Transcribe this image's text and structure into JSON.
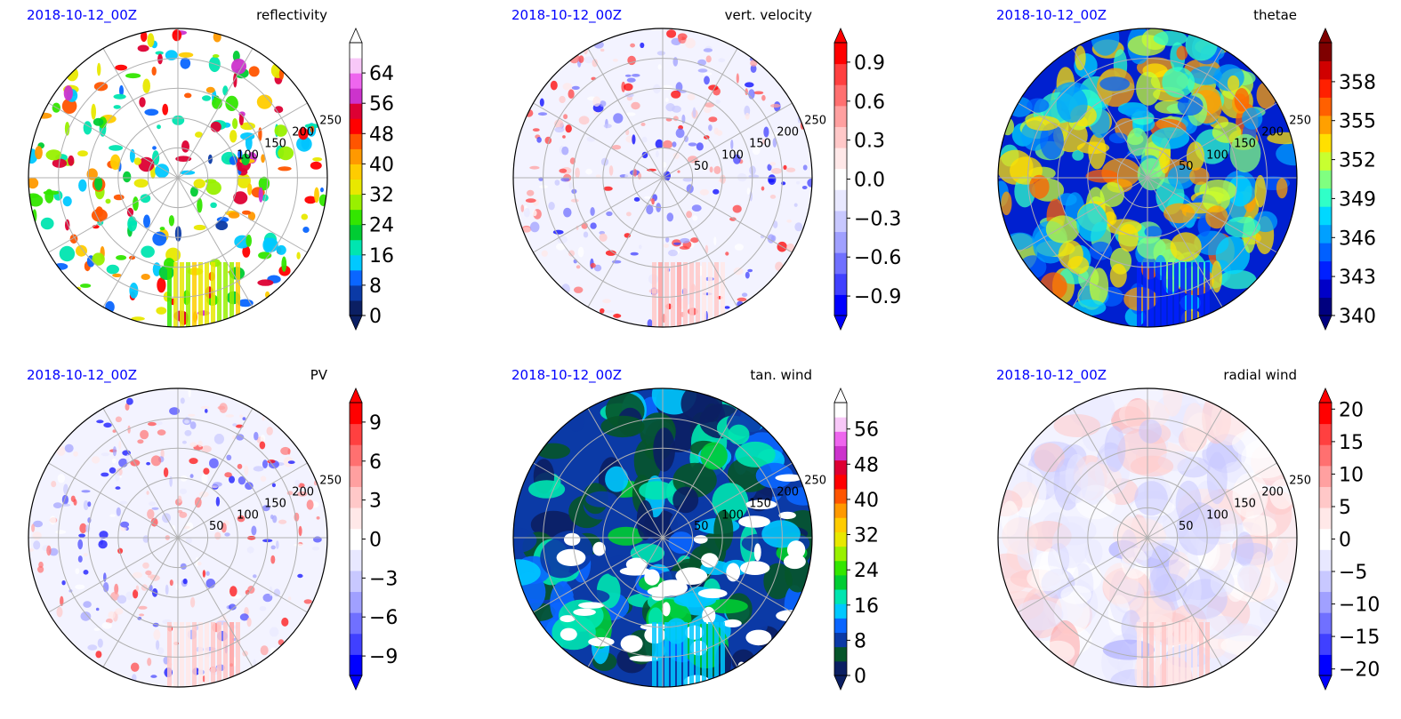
{
  "chart_data": [
    {
      "type": "heatmap",
      "projection": "polar",
      "date": "2018-10-12_00Z",
      "title": "reflectivity",
      "ring_labels": [
        "100",
        "150",
        "200",
        "250"
      ],
      "colorbar_ticks": [
        "0",
        "8",
        "16",
        "24",
        "32",
        "40",
        "48",
        "56",
        "64"
      ],
      "colorbar_range": [
        0,
        72
      ],
      "colormap": [
        "#0b1f63",
        "#0b3aa6",
        "#0a66ff",
        "#00c8ff",
        "#00e5b0",
        "#00cc33",
        "#33e600",
        "#99f000",
        "#e8e800",
        "#ffcc00",
        "#ff9900",
        "#ff5500",
        "#ff0000",
        "#dd0033",
        "#cc33cc",
        "#ee66ee",
        "#f8c8f8",
        "#ffffff"
      ],
      "extend": "both"
    },
    {
      "type": "heatmap",
      "projection": "polar",
      "date": "2018-10-12_00Z",
      "title": "vert. velocity",
      "ring_labels": [
        "50",
        "100",
        "150",
        "200",
        "250"
      ],
      "colorbar_ticks": [
        "0.9",
        "0.6",
        "0.3",
        "0.0",
        "−0.3",
        "−0.6",
        "−0.9"
      ],
      "colorbar_range": [
        -1.05,
        1.05
      ],
      "colormap": [
        "#0000ff",
        "#4040ff",
        "#7070ff",
        "#a0a0ff",
        "#c8c8ff",
        "#e8e8ff",
        "#ffffff",
        "#ffe8e8",
        "#ffc8c8",
        "#ffa0a0",
        "#ff7070",
        "#ff4040",
        "#ff0000"
      ],
      "extend": "both"
    },
    {
      "type": "heatmap",
      "projection": "polar",
      "date": "2018-10-12_00Z",
      "title": "thetae",
      "ring_labels": [
        "50",
        "100",
        "150",
        "200",
        "250"
      ],
      "colorbar_ticks": [
        "358",
        "355",
        "352",
        "349",
        "346",
        "343",
        "340"
      ],
      "colorbar_range": [
        340,
        361
      ],
      "colormap": [
        "#00007f",
        "#0000c8",
        "#0020ff",
        "#0060ff",
        "#00a0ff",
        "#00d8ff",
        "#30ffc8",
        "#80ff80",
        "#c8ff30",
        "#ffe000",
        "#ffa000",
        "#ff6000",
        "#ff2000",
        "#d00000",
        "#7f0000"
      ],
      "extend": "both"
    },
    {
      "type": "heatmap",
      "projection": "polar",
      "date": "2018-10-12_00Z",
      "title": "PV",
      "ring_labels": [
        "50",
        "100",
        "150",
        "200",
        "250"
      ],
      "colorbar_ticks": [
        "9",
        "6",
        "3",
        "0",
        "−3",
        "−6",
        "−9"
      ],
      "colorbar_range": [
        -10.5,
        10.5
      ],
      "colormap": [
        "#0000ff",
        "#4040ff",
        "#7070ff",
        "#a0a0ff",
        "#c8c8ff",
        "#e8e8ff",
        "#ffffff",
        "#ffe8e8",
        "#ffc8c8",
        "#ffa0a0",
        "#ff7070",
        "#ff4040",
        "#ff0000"
      ],
      "extend": "both"
    },
    {
      "type": "heatmap",
      "projection": "polar",
      "date": "2018-10-12_00Z",
      "title": "tan. wind",
      "ring_labels": [
        "50",
        "100",
        "150",
        "200",
        "250"
      ],
      "colorbar_ticks": [
        "56",
        "48",
        "40",
        "32",
        "24",
        "16",
        "8",
        "0"
      ],
      "colorbar_range": [
        0,
        62
      ],
      "colormap": [
        "#0b1f63",
        "#06552a",
        "#0b3aa6",
        "#0a66ff",
        "#00c8ff",
        "#00e5b0",
        "#00cc33",
        "#33e600",
        "#99f000",
        "#e8e800",
        "#ffcc00",
        "#ff9900",
        "#ff5500",
        "#ff0000",
        "#dd0033",
        "#cc33cc",
        "#ee66ee",
        "#f8c8f8",
        "#ffffff"
      ],
      "extend": "both"
    },
    {
      "type": "heatmap",
      "projection": "polar",
      "date": "2018-10-12_00Z",
      "title": "radial wind",
      "ring_labels": [
        "50",
        "100",
        "150",
        "200",
        "250"
      ],
      "colorbar_ticks": [
        "20",
        "15",
        "10",
        "5",
        "0",
        "−5",
        "−10",
        "−15",
        "−20"
      ],
      "colorbar_range": [
        -21,
        21
      ],
      "colormap": [
        "#0000ff",
        "#4040ff",
        "#7070ff",
        "#a0a0ff",
        "#c8c8ff",
        "#e8e8ff",
        "#ffffff",
        "#ffe8e8",
        "#ffc8c8",
        "#ffa0a0",
        "#ff7070",
        "#ff4040",
        "#ff0000"
      ],
      "extend": "both"
    }
  ]
}
